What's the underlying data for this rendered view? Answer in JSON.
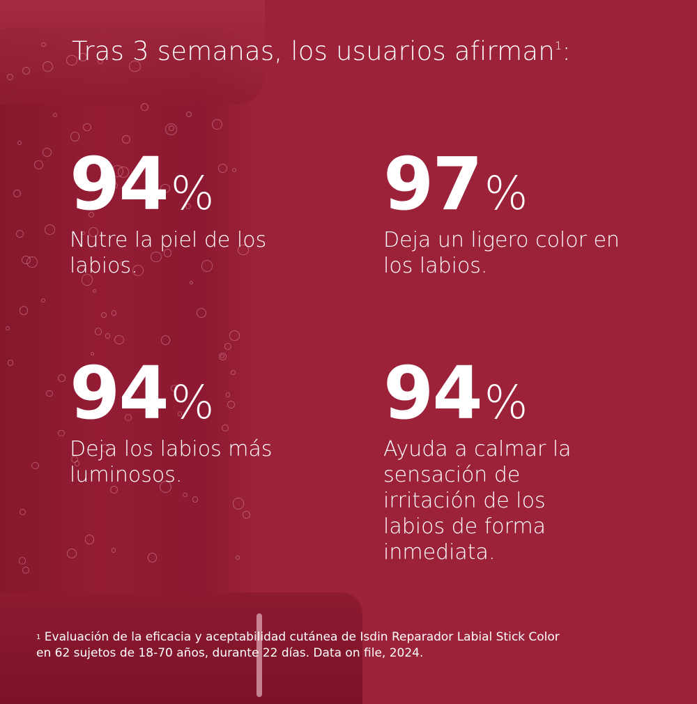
{
  "headline": {
    "text": "Tras 3 semanas, los usuarios afirman",
    "footnote_marker": "1",
    "suffix": ":"
  },
  "stats": [
    {
      "value": "94",
      "unit": "%",
      "description": "Nutre la piel de los labios."
    },
    {
      "value": "97",
      "unit": "%",
      "description": "Deja un ligero color en los labios."
    },
    {
      "value": "94",
      "unit": "%",
      "description": "Deja los labios más luminosos."
    },
    {
      "value": "94",
      "unit": "%",
      "description": "Ayuda a calmar la sensación de irritación de los labios de forma inmediata."
    }
  ],
  "footnote": {
    "marker": "1",
    "line1": "Evaluación de la eficacia y aceptabilidad cutánea de Isdin Reparador Labial Stick Color",
    "line2": "en 62 sujetos de 18-70 años, durante 22 días. Data on file, 2024."
  },
  "colors": {
    "background": "#9c2239",
    "text": "#ffffff"
  }
}
